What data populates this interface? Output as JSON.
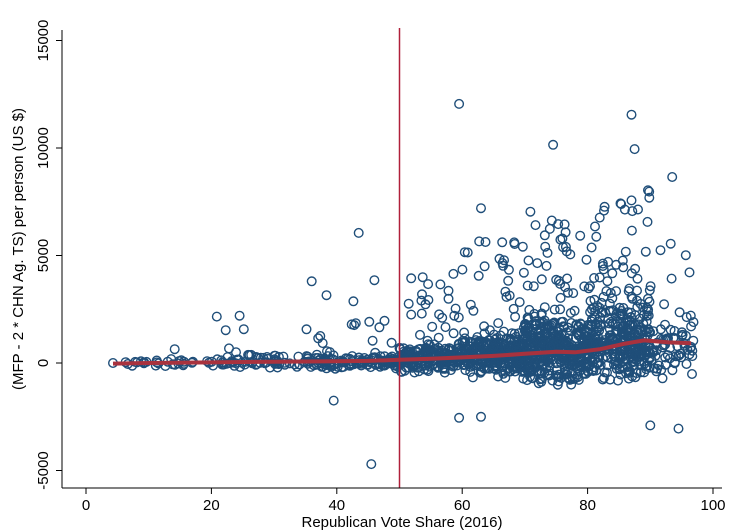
{
  "chart_data": {
    "type": "scatter",
    "xlabel": "Republican Vote Share (2016)",
    "ylabel": "(MFP - 2 * CHN Ag. TS) per person (US $)",
    "xlim": [
      0,
      100
    ],
    "ylim": [
      -5000,
      15000
    ],
    "xticks": [
      0,
      20,
      40,
      60,
      80,
      100
    ],
    "yticks": [
      -5000,
      0,
      5000,
      10000,
      15000
    ],
    "grid": false,
    "legend": "none",
    "vertical_reference_line": {
      "x": 50,
      "color": "#b0203a"
    },
    "colors": {
      "points": "#1f4e79",
      "smooth_line": "#a8323e",
      "axis": "#000000"
    },
    "notable_points": [
      {
        "x": 4.3,
        "y": 0
      },
      {
        "x": 24.5,
        "y": 2200
      },
      {
        "x": 36,
        "y": 3800
      },
      {
        "x": 39.5,
        "y": -1750
      },
      {
        "x": 43.5,
        "y": 6050
      },
      {
        "x": 46,
        "y": 3850
      },
      {
        "x": 45.5,
        "y": -4700
      },
      {
        "x": 59.5,
        "y": 12050
      },
      {
        "x": 59.5,
        "y": -2550
      },
      {
        "x": 63,
        "y": 7200
      },
      {
        "x": 63,
        "y": -2500
      },
      {
        "x": 74.5,
        "y": 10150
      },
      {
        "x": 87,
        "y": 11550
      },
      {
        "x": 87.5,
        "y": 9950
      },
      {
        "x": 93.5,
        "y": 8650
      },
      {
        "x": 90,
        "y": -2900
      },
      {
        "x": 94.5,
        "y": -3050
      },
      {
        "x": 96.5,
        "y": 1700
      }
    ],
    "scatter_density": [
      {
        "x_range": [
          5,
          20
        ],
        "n": 30,
        "y_center": 0,
        "y_spread": 150,
        "outlier_rate": 0.08,
        "outlier_max": 1000
      },
      {
        "x_range": [
          20,
          35
        ],
        "n": 70,
        "y_center": 50,
        "y_spread": 250,
        "outlier_rate": 0.1,
        "outlier_max": 2500
      },
      {
        "x_range": [
          35,
          50
        ],
        "n": 140,
        "y_center": 50,
        "y_spread": 300,
        "outlier_rate": 0.08,
        "outlier_max": 3200
      },
      {
        "x_range": [
          50,
          60
        ],
        "n": 220,
        "y_center": 200,
        "y_spread": 550,
        "outlier_rate": 0.1,
        "outlier_max": 4000
      },
      {
        "x_range": [
          60,
          70
        ],
        "n": 320,
        "y_center": 350,
        "y_spread": 900,
        "outlier_rate": 0.12,
        "outlier_max": 5500
      },
      {
        "x_range": [
          70,
          80
        ],
        "n": 420,
        "y_center": 550,
        "y_spread": 1300,
        "outlier_rate": 0.12,
        "outlier_max": 6500
      },
      {
        "x_range": [
          80,
          90
        ],
        "n": 380,
        "y_center": 900,
        "y_spread": 1500,
        "outlier_rate": 0.15,
        "outlier_max": 7200
      },
      {
        "x_range": [
          90,
          97
        ],
        "n": 70,
        "y_center": 700,
        "y_spread": 1200,
        "outlier_rate": 0.1,
        "outlier_max": 5000
      }
    ],
    "smooth_line": {
      "x": [
        4.3,
        10,
        20,
        30,
        40,
        45,
        50,
        55,
        60,
        65,
        70,
        75,
        78,
        82,
        86,
        89,
        93,
        96.5
      ],
      "y": [
        -30,
        0,
        30,
        60,
        80,
        100,
        150,
        200,
        260,
        330,
        430,
        520,
        500,
        640,
        900,
        1050,
        960,
        920
      ]
    }
  }
}
